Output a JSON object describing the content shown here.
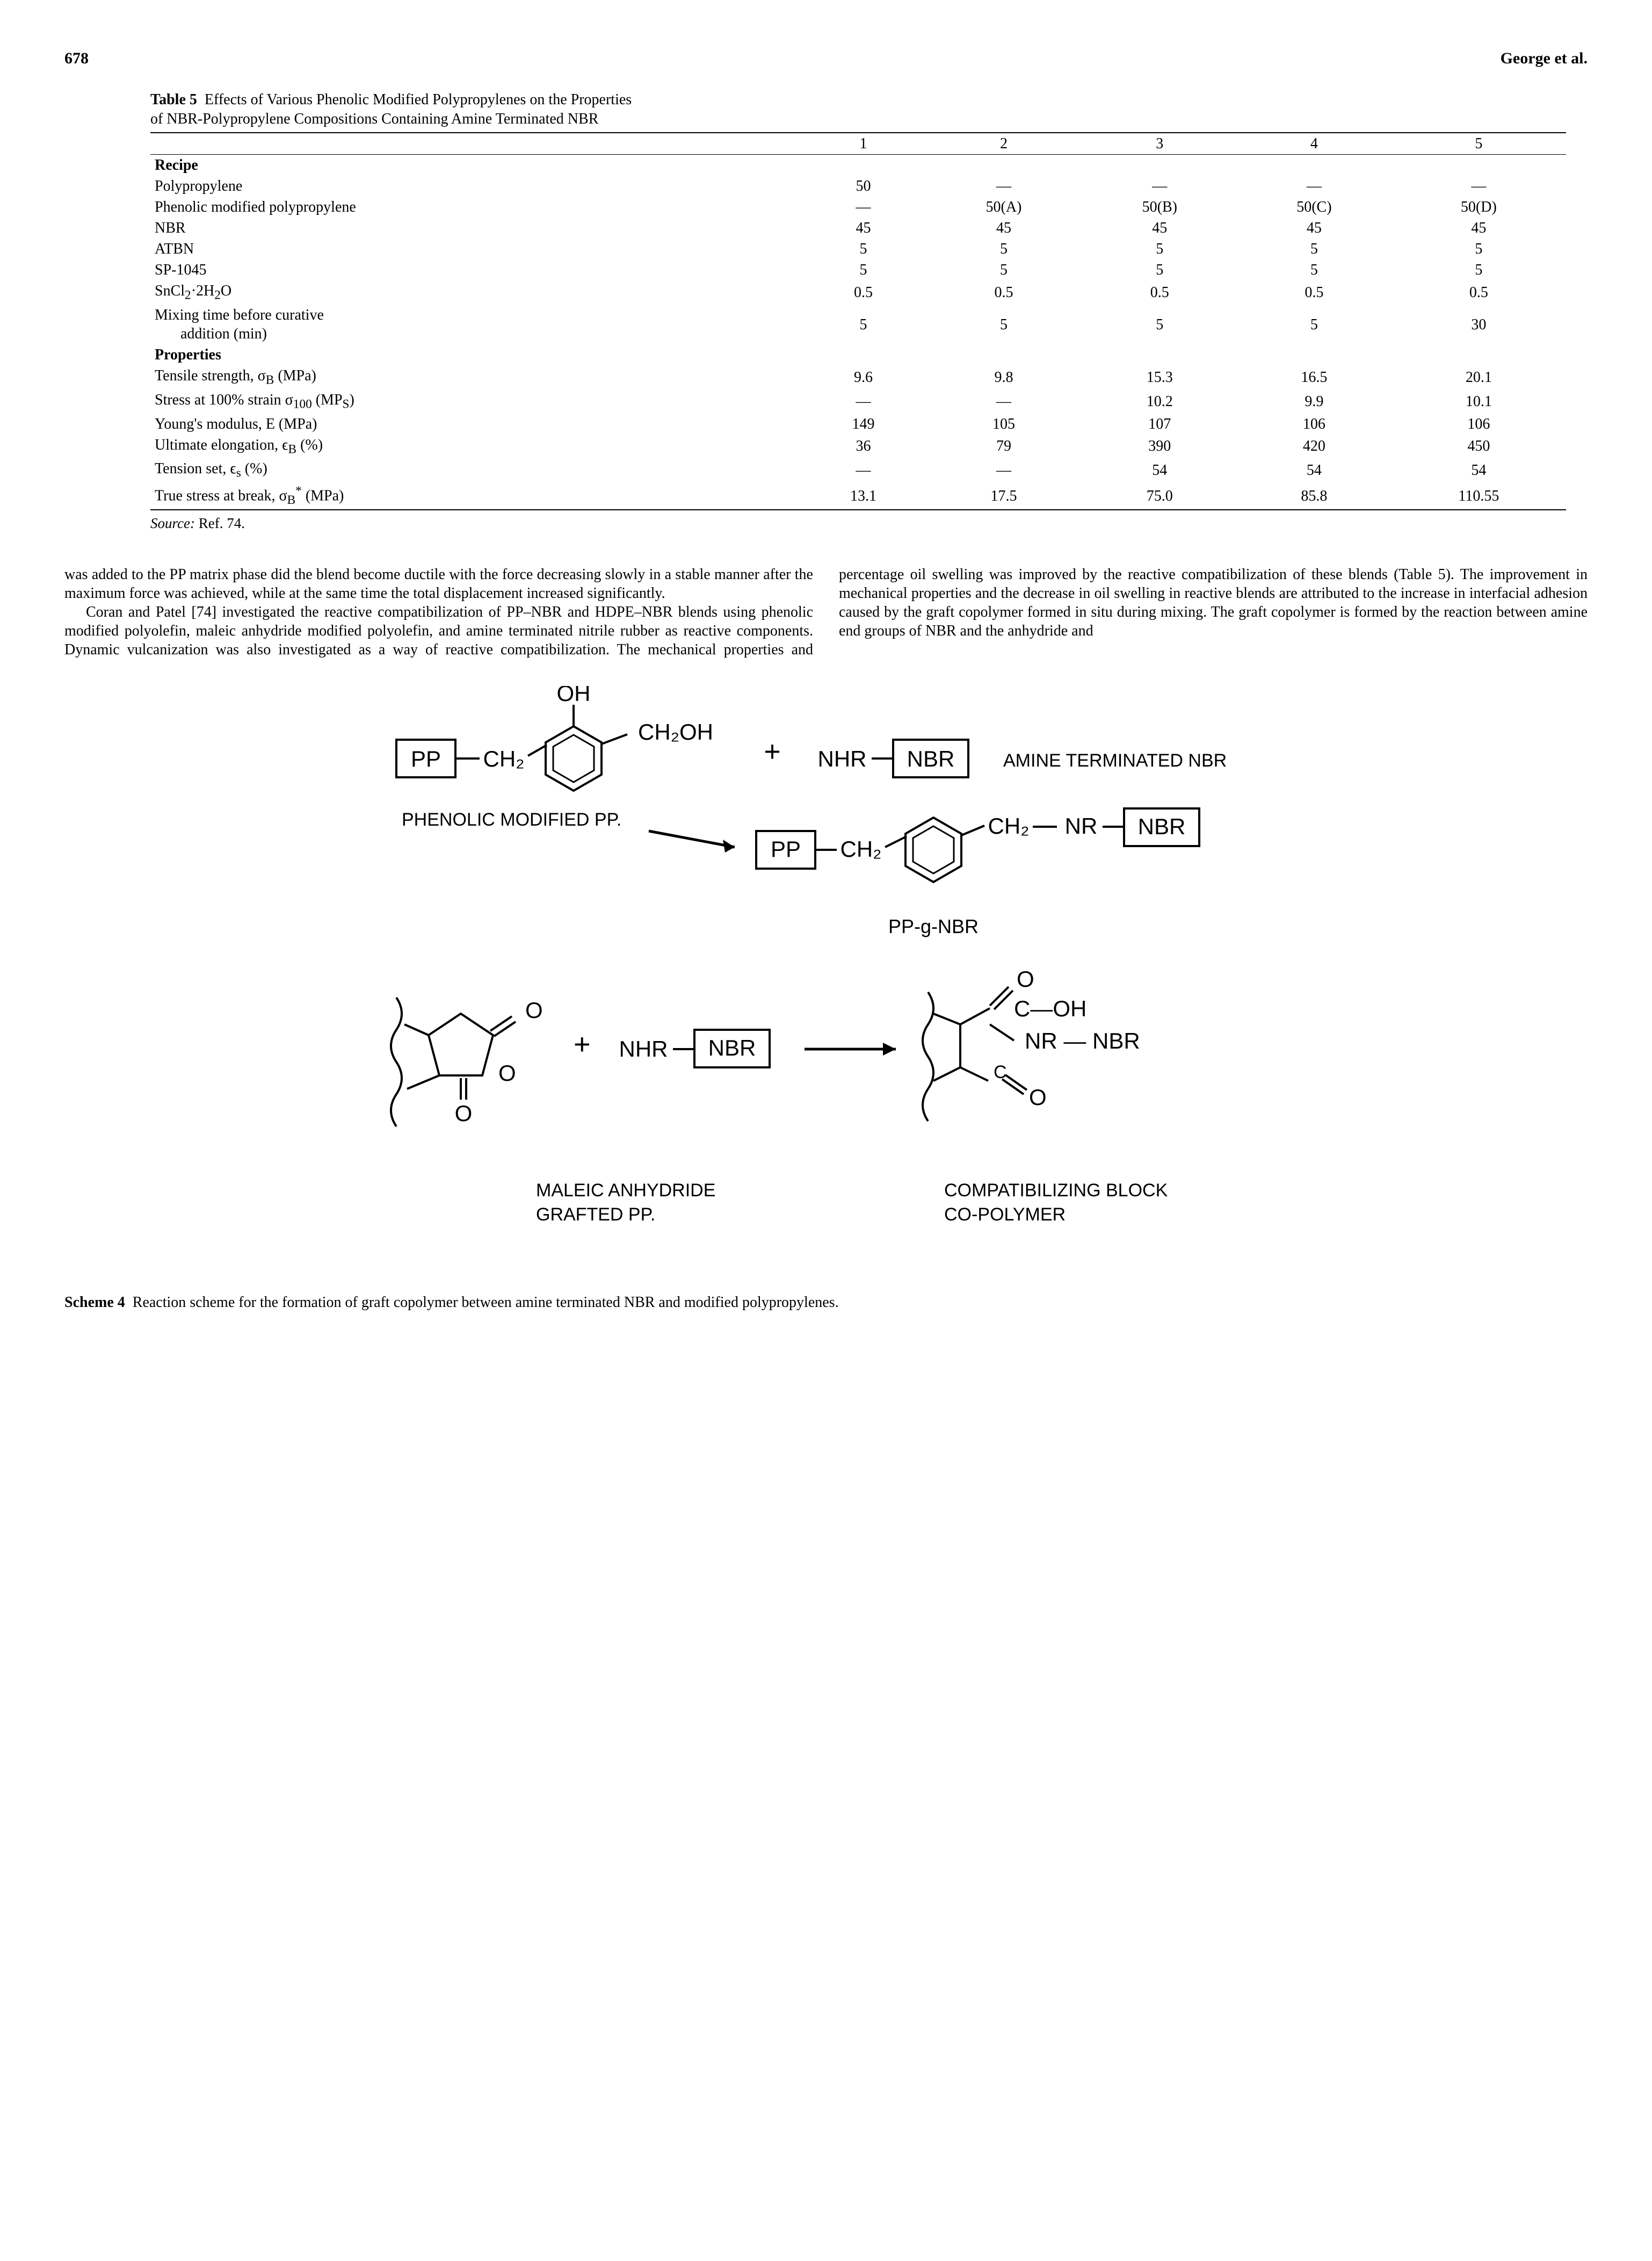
{
  "header": {
    "page_number": "678",
    "running_head": "George et al."
  },
  "table": {
    "label": "Table 5",
    "title_line1": "Effects of Various Phenolic Modified Polypropylenes on the Properties",
    "title_line2": "of NBR-Polypropylene Compositions Containing Amine Terminated NBR",
    "col_headers": [
      "",
      "1",
      "2",
      "3",
      "4",
      "5"
    ],
    "sections": [
      {
        "heading": "Recipe",
        "rows": [
          {
            "label": "Polypropylene",
            "cells": [
              "50",
              "—",
              "—",
              "—",
              "—"
            ]
          },
          {
            "label": "Phenolic modified polypropylene",
            "cells": [
              "—",
              "50(A)",
              "50(B)",
              "50(C)",
              "50(D)"
            ]
          },
          {
            "label": "NBR",
            "cells": [
              "45",
              "45",
              "45",
              "45",
              "45"
            ]
          },
          {
            "label": "ATBN",
            "cells": [
              "5",
              "5",
              "5",
              "5",
              "5"
            ]
          },
          {
            "label": "SP-1045",
            "cells": [
              "5",
              "5",
              "5",
              "5",
              "5"
            ]
          },
          {
            "label_html": "SnCl<sub>2</sub>·2H<sub>2</sub>O",
            "cells": [
              "0.5",
              "0.5",
              "0.5",
              "0.5",
              "0.5"
            ]
          },
          {
            "label_html": "Mixing time before curative<br><span class=\"indent\">addition (min)</span>",
            "cells": [
              "5",
              "5",
              "5",
              "5",
              "30"
            ]
          }
        ]
      },
      {
        "heading": "Properties",
        "rows": [
          {
            "label_html": "Tensile strength, σ<sub>B</sub> (MPa)",
            "cells": [
              "9.6",
              "9.8",
              "15.3",
              "16.5",
              "20.1"
            ]
          },
          {
            "label_html": "Stress at 100% strain σ<sub>100</sub> (MP<sub>S</sub>)",
            "cells": [
              "—",
              "—",
              "10.2",
              "9.9",
              "10.1"
            ]
          },
          {
            "label": "Young's modulus, E (MPa)",
            "cells": [
              "149",
              "105",
              "107",
              "106",
              "106"
            ]
          },
          {
            "label_html": "Ultimate elongation, ϵ<sub>B</sub> (%)",
            "cells": [
              "36",
              "79",
              "390",
              "420",
              "450"
            ]
          },
          {
            "label_html": "Tension set, ϵ<sub>s</sub> (%)",
            "cells": [
              "—",
              "—",
              "54",
              "54",
              "54"
            ]
          },
          {
            "label_html": "True stress at break, σ<sub>B</sub><sup>*</sup> (MPa)",
            "cells": [
              "13.1",
              "17.5",
              "75.0",
              "85.8",
              "110.55"
            ]
          }
        ]
      }
    ],
    "source": "Source:",
    "source_ref": " Ref. 74."
  },
  "body": {
    "p1": "was added to the PP matrix phase did the blend become ductile with the force decreasing slowly in a stable manner after the maximum force was achieved, while at the same time the total displacement increased significantly.",
    "p2": "Coran and Patel [74] investigated the reactive compatibilization of PP–NBR and HDPE–NBR blends using phenolic modified polyolefin, maleic anhydride modified polyolefin, and amine terminated nitrile rubber as reactive components. Dynamic vulcanization was also inves",
    "p2_tail": "tigated as a way of reactive compatibilization. The mechanical properties and percentage oil swelling was improved by the reactive compatibilization of these blends (Table 5). The improvement in mechanical properties and the decrease in oil swelling in reactive blends are attributed to the increase in interfacial adhesion caused by the graft copolymer formed in situ during mixing. The graft copolymer is formed by the reaction between amine end groups of NBR and the anhydride and"
  },
  "scheme": {
    "labels": {
      "pp": "PP",
      "nbr": "NBR",
      "oh": "OH",
      "ch2": "CH₂",
      "ch2oh": "CH₂OH",
      "nhr": "NHR",
      "nr": "NR",
      "coh": "C—OH",
      "plus": "+",
      "arrow": "→",
      "o": "O",
      "nr_nbr": "NR — NBR",
      "phen_mod_pp": "PHENOLIC MODIFIED PP.",
      "amine_nbr": "AMINE TERMINATED NBR",
      "pp_g_nbr": "PP-g-NBR",
      "maleic": "MALEIC ANHYDRIDE",
      "grafted": "GRAFTED PP.",
      "compat1": "COMPATIBILIZING BLOCK",
      "compat2": "CO-POLYMER"
    },
    "caption_label": "Scheme 4",
    "caption_text": "Reaction scheme for the formation of graft copolymer between amine terminated NBR and modified polypropylenes."
  }
}
